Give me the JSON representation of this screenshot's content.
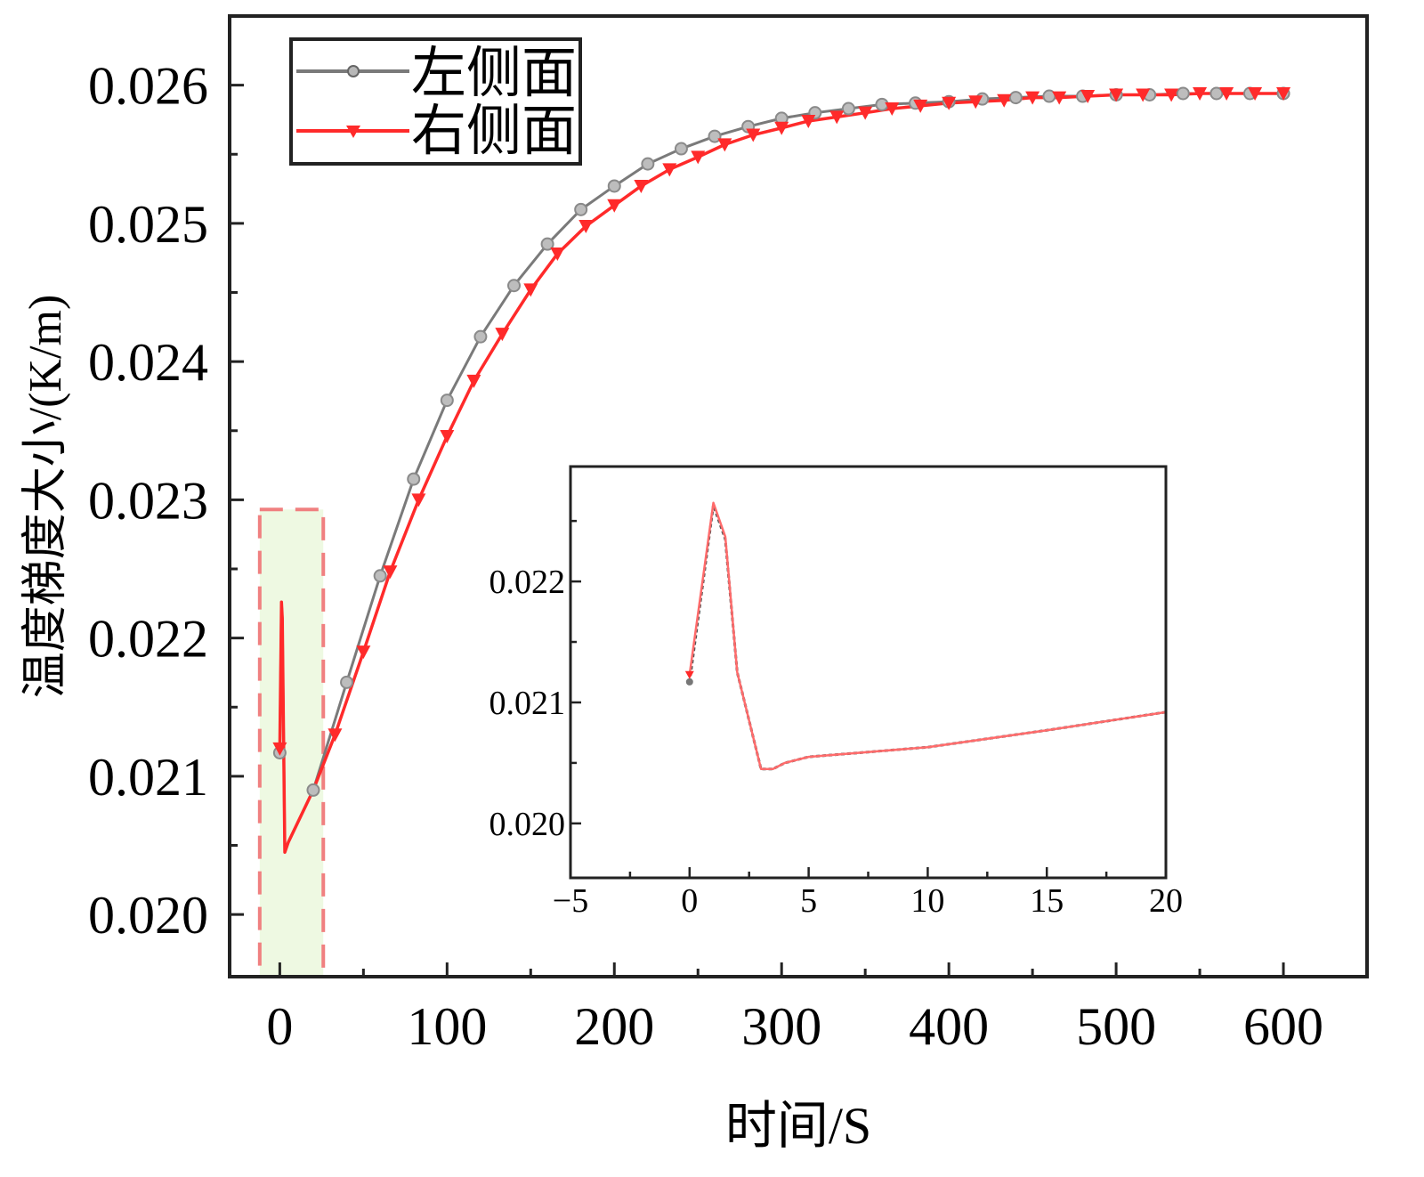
{
  "chart_data": [
    {
      "type": "line",
      "title": "",
      "xlabel": "时间/S",
      "ylabel": "温度梯度大小/(K/m)",
      "xlim": [
        -30,
        650
      ],
      "ylim": [
        0.01955,
        0.0265
      ],
      "x_ticks": [
        "0",
        "100",
        "200",
        "300",
        "400",
        "500",
        "600"
      ],
      "y_ticks": [
        "0.020",
        "0.021",
        "0.022",
        "0.023",
        "0.024",
        "0.025",
        "0.026"
      ],
      "legend": {
        "position": "top-left"
      },
      "highlight_region": {
        "x": [
          -12,
          26
        ],
        "y": [
          0.01955,
          0.02293
        ],
        "fill": "#eef9e2",
        "stroke": "#f08080"
      },
      "series": [
        {
          "name": "左侧面",
          "color": "#7a7a7a",
          "marker": "circle",
          "x": [
            0,
            1,
            1.5,
            3,
            5,
            20,
            40,
            60,
            80,
            100,
            120,
            140,
            160,
            180,
            200,
            220,
            240,
            260,
            280,
            300,
            320,
            340,
            360,
            380,
            400,
            420,
            440,
            460,
            480,
            500,
            520,
            540,
            560,
            580,
            600
          ],
          "y": [
            0.02117,
            0.02226,
            0.02214,
            0.02045,
            0.02052,
            0.0209,
            0.02168,
            0.02245,
            0.02315,
            0.02372,
            0.02418,
            0.02455,
            0.02485,
            0.0251,
            0.02527,
            0.02543,
            0.02554,
            0.02563,
            0.0257,
            0.02576,
            0.0258,
            0.02583,
            0.02586,
            0.02587,
            0.02588,
            0.0259,
            0.02591,
            0.02592,
            0.02592,
            0.02593,
            0.02593,
            0.02594,
            0.02594,
            0.02594,
            0.02594
          ],
          "markers_x": [
            0,
            20,
            40,
            60,
            80,
            100,
            120,
            140,
            160,
            180,
            200,
            220,
            240,
            260,
            280,
            300,
            320,
            340,
            360,
            380,
            400,
            420,
            440,
            460,
            480,
            500,
            520,
            540,
            560,
            580,
            600
          ]
        },
        {
          "name": "右侧面",
          "color": "#ff2a2a",
          "marker": "triangle-down",
          "x": [
            0,
            1,
            1.5,
            3,
            5,
            20,
            33,
            50,
            66,
            83,
            100,
            116,
            133,
            150,
            166,
            183,
            200,
            216,
            233,
            250,
            266,
            283,
            300,
            316,
            333,
            350,
            366,
            383,
            400,
            416,
            433,
            450,
            466,
            483,
            500,
            516,
            533,
            550,
            566,
            583,
            600
          ],
          "y": [
            0.0212,
            0.02226,
            0.02214,
            0.02045,
            0.02052,
            0.0209,
            0.0213,
            0.0219,
            0.02248,
            0.023,
            0.02346,
            0.02386,
            0.0242,
            0.02452,
            0.02478,
            0.02498,
            0.02513,
            0.02527,
            0.02539,
            0.02548,
            0.02557,
            0.02564,
            0.02569,
            0.02574,
            0.02577,
            0.0258,
            0.02583,
            0.02585,
            0.02587,
            0.02588,
            0.02589,
            0.02591,
            0.02591,
            0.02592,
            0.02593,
            0.02593,
            0.02593,
            0.02594,
            0.02594,
            0.02594,
            0.02594
          ],
          "markers_x": [
            0,
            33,
            50,
            66,
            83,
            100,
            116,
            133,
            150,
            166,
            183,
            200,
            216,
            233,
            250,
            266,
            283,
            300,
            316,
            333,
            350,
            366,
            383,
            400,
            416,
            433,
            450,
            466,
            483,
            500,
            516,
            533,
            550,
            566,
            583,
            600
          ]
        }
      ]
    },
    {
      "type": "line",
      "title": "",
      "xlabel": "",
      "ylabel": "",
      "placement": "inset, lower-right of main chart",
      "xlim": [
        -5,
        20
      ],
      "ylim": [
        0.01955,
        0.02295
      ],
      "x_ticks": [
        "−5",
        "0",
        "5",
        "10",
        "15",
        "20"
      ],
      "y_ticks": [
        "0.020",
        "0.021",
        "0.022"
      ],
      "series": [
        {
          "name": "左侧面",
          "color": "#555555",
          "x": [
            0,
            1,
            1.5,
            2,
            3,
            3.5,
            4,
            5,
            10,
            15,
            20
          ],
          "y": [
            0.02117,
            0.02263,
            0.02235,
            0.02125,
            0.02045,
            0.02045,
            0.0205,
            0.02055,
            0.02063,
            0.02077,
            0.02092
          ]
        },
        {
          "name": "右侧面",
          "color": "#ff6b6b",
          "x": [
            0,
            1,
            1.5,
            2,
            3,
            3.5,
            4,
            5,
            10,
            15,
            20
          ],
          "y": [
            0.02123,
            0.02265,
            0.02237,
            0.02125,
            0.02045,
            0.02045,
            0.0205,
            0.02055,
            0.02063,
            0.02077,
            0.02092
          ]
        }
      ]
    }
  ]
}
